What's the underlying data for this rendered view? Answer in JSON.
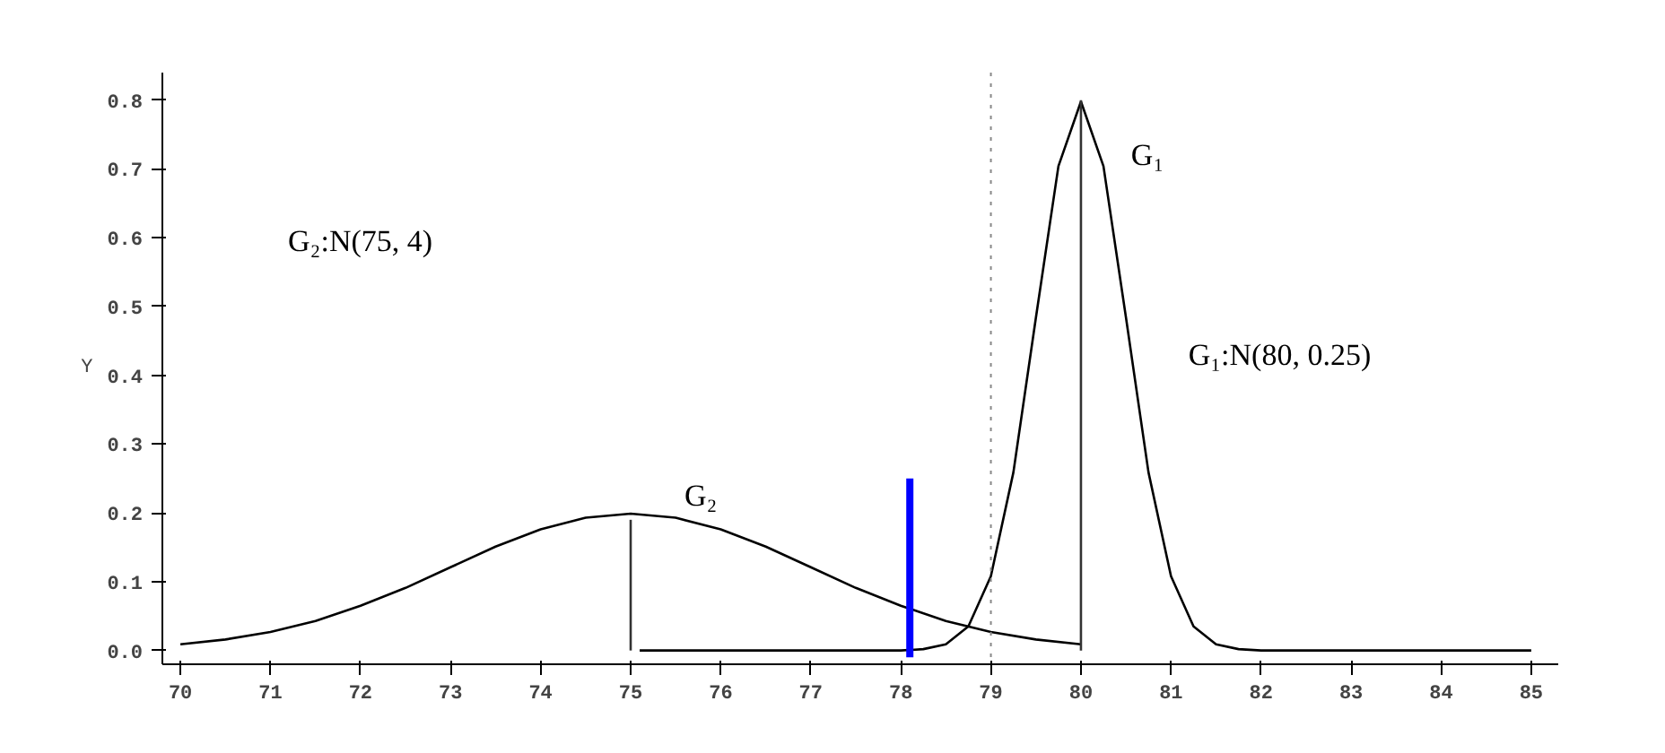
{
  "chart_data": {
    "type": "line",
    "ylabel": "Y",
    "xlim": [
      69.8,
      85.3
    ],
    "ylim": [
      -0.02,
      0.84
    ],
    "xticks": [
      70,
      71,
      72,
      73,
      74,
      75,
      76,
      77,
      78,
      79,
      80,
      81,
      82,
      83,
      84,
      85
    ],
    "yticks": [
      {
        "value": 0,
        "label": "0.0"
      },
      0.1,
      0.2,
      0.3,
      0.4,
      0.5,
      0.6,
      0.7,
      0.8
    ],
    "grid": false,
    "marker": "none",
    "line_style": "solid",
    "series": [
      {
        "color": "#000000",
        "x": [
          70,
          70.5,
          71,
          71.5,
          72,
          72.5,
          73,
          73.5,
          74,
          74.5,
          75,
          75.5,
          76,
          76.5,
          77,
          77.5,
          78,
          78.5,
          79,
          79.5,
          80
        ],
        "values": [
          0.009,
          0.016,
          0.027,
          0.043,
          0.065,
          0.091,
          0.121,
          0.151,
          0.176,
          0.193,
          0.199,
          0.193,
          0.176,
          0.151,
          0.121,
          0.091,
          0.065,
          0.043,
          0.027,
          0.016,
          0.009
        ]
      },
      {
        "color": "#000000",
        "x": [
          75.1,
          77,
          78,
          78.25,
          78.5,
          78.75,
          79,
          79.25,
          79.5,
          79.75,
          80,
          80.25,
          80.5,
          80.75,
          81,
          81.25,
          81.5,
          81.75,
          82,
          83,
          85
        ],
        "values": [
          0,
          0,
          0,
          0.002,
          0.009,
          0.035,
          0.108,
          0.259,
          0.484,
          0.704,
          0.798,
          0.704,
          0.484,
          0.259,
          0.108,
          0.035,
          0.009,
          0.002,
          0,
          0,
          0
        ]
      },
      {
        "color": "#333333",
        "x": [
          75,
          75
        ],
        "values": [
          0,
          0.19
        ]
      },
      {
        "color": "#333333",
        "x": [
          80,
          80
        ],
        "values": [
          0,
          0.8
        ]
      },
      {
        "color": "#0000ff",
        "x": [
          78.1,
          78.1
        ],
        "values": [
          -0.01,
          0.25
        ]
      }
    ],
    "ref_lines": [
      {
        "axis": "x",
        "value": 79,
        "color": "#888888",
        "line_style": "dotted"
      }
    ],
    "annotations": [
      "G₂:N(75, 4)",
      "G₁",
      "G₁:N(80, 0.25)",
      "G₂"
    ]
  }
}
